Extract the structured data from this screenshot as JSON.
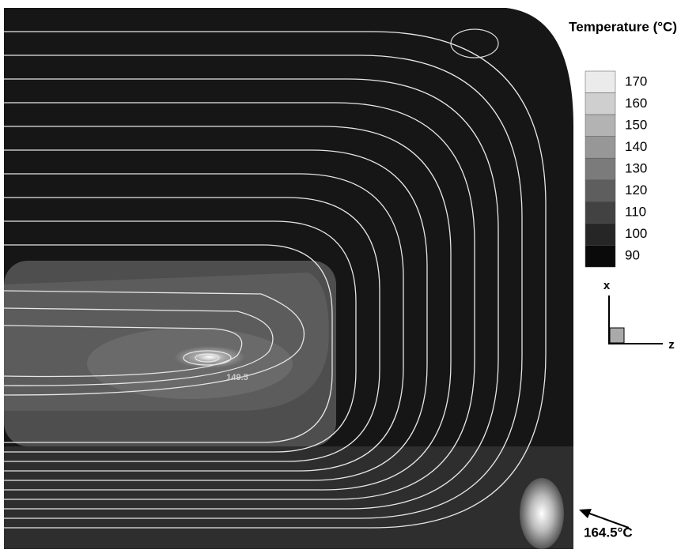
{
  "title": "Temperature (°C)",
  "colorbar": {
    "labels": [
      170,
      160,
      150,
      140,
      130,
      120,
      110,
      100,
      90
    ]
  },
  "axes": {
    "x": "x",
    "z": "z"
  },
  "annotations": {
    "hot_spot": "164.5°C",
    "contour": "149.5"
  }
}
